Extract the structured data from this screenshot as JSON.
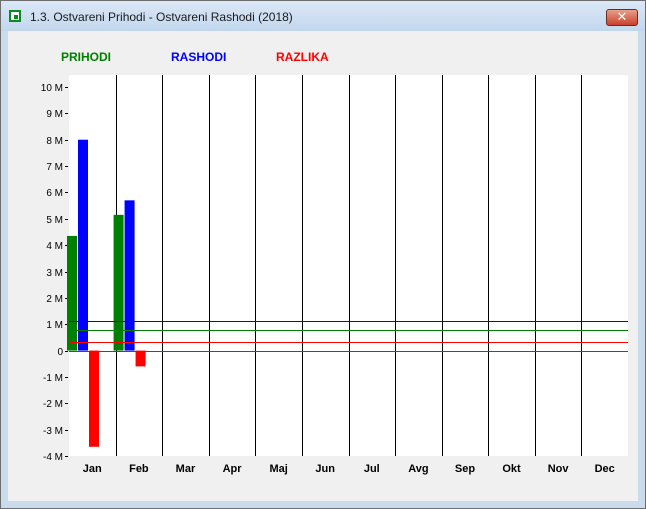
{
  "window": {
    "title": "1.3. Ostvareni Prihodi - Ostvareni Rashodi (2018)",
    "close_glyph": "✕"
  },
  "legend": [
    {
      "label": "PRIHODI",
      "color": "#008000"
    },
    {
      "label": "RASHODI",
      "color": "#0000ff"
    },
    {
      "label": "RAZLIKA",
      "color": "#ff0000"
    }
  ],
  "chart_data": {
    "type": "bar",
    "categories": [
      "Jan",
      "Feb",
      "Mar",
      "Apr",
      "Maj",
      "Jun",
      "Jul",
      "Avg",
      "Sep",
      "Okt",
      "Nov",
      "Dec"
    ],
    "series": [
      {
        "name": "PRIHODI",
        "color": "#008000",
        "values": [
          4.35,
          5.15,
          null,
          null,
          null,
          null,
          null,
          null,
          null,
          null,
          null,
          null
        ]
      },
      {
        "name": "RASHODI",
        "color": "#0000ff",
        "values": [
          8.0,
          5.7,
          null,
          null,
          null,
          null,
          null,
          null,
          null,
          null,
          null,
          null
        ]
      },
      {
        "name": "RAZLIKA",
        "color": "#ff0000",
        "values": [
          -3.65,
          -0.6,
          null,
          null,
          null,
          null,
          null,
          null,
          null,
          null,
          null,
          null
        ]
      }
    ],
    "reference_lines": [
      {
        "series": "PRIHODI",
        "value": 0.79,
        "color": "#008000"
      },
      {
        "series": "RASHODI",
        "value": 1.14,
        "color": "#0000ff"
      },
      {
        "series": "RAZLIKA",
        "value": 0.32,
        "color": "#ff0000"
      },
      {
        "series": "RAZLIKA",
        "value": 0.0,
        "color": "#ff0000"
      }
    ],
    "y_ticks": [
      "10 M",
      "9 M",
      "8 M",
      "7 M",
      "6 M",
      "5 M",
      "4 M",
      "3 M",
      "2 M",
      "1 M",
      "0",
      "-1 M",
      "-2 M",
      "-3 M",
      "-4 M"
    ],
    "ylim": [
      -4,
      10
    ],
    "grid": "vertical lines between months",
    "legend_position": "top-left"
  }
}
